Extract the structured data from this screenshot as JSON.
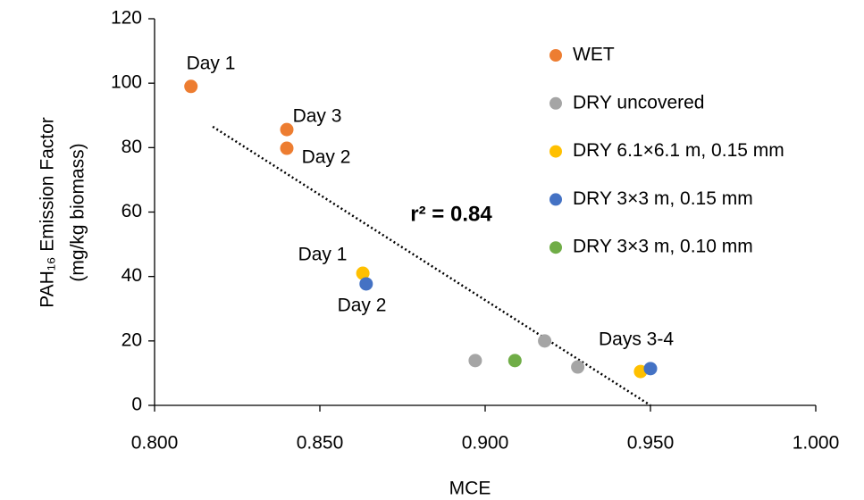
{
  "chart_data": {
    "type": "scatter",
    "x_label": "MCE",
    "y_label": [
      "PAH₁₆ Emission Factor",
      "(mg/kg biomass)"
    ],
    "xlim": [
      0.8,
      1.0
    ],
    "xticks": [
      {
        "value": 0.8,
        "label": "0.800"
      },
      {
        "value": 0.85,
        "label": "0.850"
      },
      {
        "value": 0.9,
        "label": "0.900"
      },
      {
        "value": 0.95,
        "label": "0.950"
      },
      {
        "value": 1.0,
        "label": "1.000"
      }
    ],
    "ylim": [
      0,
      120
    ],
    "yticks": [
      0,
      20,
      40,
      60,
      80,
      100,
      120
    ],
    "grid": false,
    "legend": "right",
    "series": [
      {
        "name": "WET",
        "color": "#ED7D31",
        "x": [
          0.811,
          0.84,
          0.84
        ],
        "values": [
          99,
          85.6,
          79.8
        ]
      },
      {
        "name": "DRY uncovered",
        "color": "#A5A5A5",
        "x": [
          0.897,
          0.918,
          0.928
        ],
        "values": [
          13.9,
          20,
          11.9
        ]
      },
      {
        "name": "DRY 6.1×6.1 m, 0.15 mm",
        "color": "#FFC000",
        "x": [
          0.863,
          0.947
        ],
        "values": [
          41,
          10.5
        ]
      },
      {
        "name": "DRY 3×3 m, 0.15 mm",
        "color": "#4472C4",
        "x": [
          0.864,
          0.95
        ],
        "values": [
          37.7,
          11.4
        ]
      },
      {
        "name": "DRY 3×3 m, 0.10 mm",
        "color": "#70AD47",
        "x": [
          0.909
        ],
        "values": [
          13.9
        ]
      }
    ],
    "trendline": {
      "x": [
        0.8176,
        0.95
      ],
      "values": [
        86.5,
        0
      ]
    },
    "annotations": [
      "Day 1",
      "Day 3",
      "Day 2",
      "r² = 0.84",
      "Day 1",
      "Day 2",
      "Days 3-4"
    ]
  }
}
